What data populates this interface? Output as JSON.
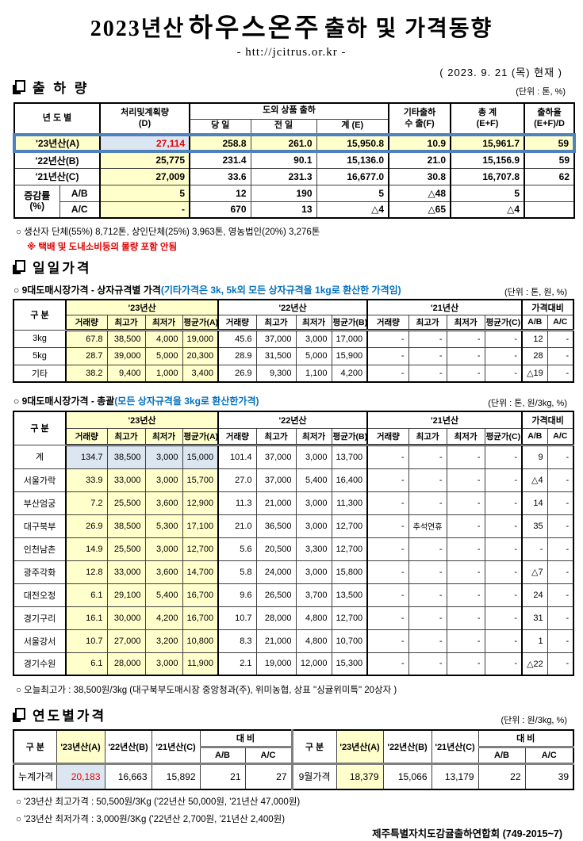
{
  "colors": {
    "highlight_yellow": "#ffffcc",
    "highlight_blue": "#dce6f1",
    "selected_row_border": "#4f81bd",
    "red_value": "#e60000",
    "blue_text": "#0070c0",
    "gray_divider": "#7f7f7f"
  },
  "header": {
    "title_prefix": "2023년산",
    "title_product": "하우스온주",
    "title_suffix": "출하 및 가격동향",
    "url": "- htt://jcitrus.or.kr -",
    "as_of": "( 2023.  9. 21 (목) 현재 )"
  },
  "sections": {
    "shipment_title": "출 하 량",
    "shipment_unit": "(단위 : 톤, %)",
    "daily_title": "일일가격",
    "daily_sub1_black": "○ 9대도매시장가격 - 상자규격별 가격",
    "daily_sub1_blue": "(기타가격은 3k, 5k외 모든 상자규격을 1kg로 환산한 가격임)",
    "daily_sub1_unit": "(단위 : 톤,  원, %)",
    "daily_sub2_black": "○ 9대도매시장가격 - 총괄",
    "daily_sub2_blue": "(모든 상자규격을 3kg로 환산한가격)",
    "daily_sub2_unit": "(단위 : 톤, 원/3kg, %)",
    "yearly_title": "연도별가격",
    "yearly_unit": "(단위 : 원/3kg, %)"
  },
  "shipment_table": {
    "headers": {
      "year_col": "년 도 별",
      "plan_l1": "처리및계획량",
      "plan_l2": "(D)",
      "offshore_group": "도외 상품 출하",
      "day": "당 일",
      "prev": "전 일",
      "sum_e": "계 (E)",
      "other_l1": "기타출하",
      "other_l2": "수 출(F)",
      "total_l1": "총   계",
      "total_l2": "(E+F)",
      "rate_l1": "출하율",
      "rate_l2": "(E+F)/D"
    },
    "rows": [
      {
        "label": "'23년산(A)",
        "values": [
          "27,114",
          "258.8",
          "261.0",
          "15,950.8",
          "10.9",
          "15,961.7",
          "59"
        ]
      },
      {
        "label": "'22년산(B)",
        "values": [
          "25,775",
          "231.4",
          "90.1",
          "15,136.0",
          "21.0",
          "15,156.9",
          "59"
        ]
      },
      {
        "label": "'21년산(C)",
        "values": [
          "27,009",
          "33.6",
          "231.3",
          "16,677.0",
          "30.8",
          "16,707.8",
          "62"
        ]
      }
    ],
    "change_label_line1": "증감률",
    "change_label_line2": "(%)",
    "change_rows": [
      {
        "label": "A/B",
        "values": [
          "5",
          "12",
          "190",
          "5",
          "△48",
          "5",
          ""
        ]
      },
      {
        "label": "A/C",
        "values": [
          "-",
          "670",
          "13",
          "△4",
          "△65",
          "△4",
          ""
        ]
      }
    ]
  },
  "notes": {
    "producers": "○ 생산자 단체(55%) 8,712톤, 상인단체(25%) 3,963톤, 영농법인(20%) 3,276톤",
    "exclusion": "※ 택배 및 도내소비등의 물량 포함 안됨",
    "today_high": "○ 오늘최고가 : 38,500원/3kg (대구북부도매시장 중앙청과(주), 위미농협, 상표 \"싱귤위미특\" 20상자 )",
    "year_high": "○ '23년산 최고가격 : 50,500원/3Kg ('22년산 50,000원, '21년산 47,000원)",
    "year_low": "○ '23년산 최저가격 :   3,000원/3Kg ('22년산  2,700원, '21년산  2,400원)",
    "org": "제주특별자치도감귤출하연합회 (749-2015~7)"
  },
  "price_headers": {
    "col_label": "구   분",
    "y23": "'23년산",
    "y22": "'22년산",
    "y21": "'21년산",
    "ratio": "가격대비",
    "sub": [
      "거래량",
      "최고가",
      "최저가",
      "평균가(A)",
      "거래량",
      "최고가",
      "최저가",
      "평균가(B)",
      "거래량",
      "최고가",
      "최저가",
      "평균가(C)",
      "A/B",
      "A/C"
    ]
  },
  "box_price_table": {
    "rows": [
      {
        "label": "3kg",
        "values": [
          "67.8",
          "38,500",
          "4,000",
          "19,000",
          "45.6",
          "37,000",
          "3,000",
          "17,000",
          "-",
          "-",
          "-",
          "-",
          "12",
          "-"
        ]
      },
      {
        "label": "5kg",
        "values": [
          "28.7",
          "39,000",
          "5,000",
          "20,300",
          "28.9",
          "31,500",
          "5,000",
          "15,900",
          "-",
          "-",
          "-",
          "-",
          "28",
          "-"
        ]
      },
      {
        "label": "기타",
        "values": [
          "38.2",
          "9,400",
          "1,000",
          "3,400",
          "26.9",
          "9,300",
          "1,100",
          "4,200",
          "-",
          "-",
          "-",
          "-",
          "△19",
          "-"
        ]
      }
    ]
  },
  "market_price_table": {
    "rows": [
      {
        "label": "계",
        "values": [
          "134.7",
          "38,500",
          "3,000",
          "15,000",
          "101.4",
          "37,000",
          "3,000",
          "13,700",
          "-",
          "-",
          "-",
          "-",
          "9",
          "-"
        ]
      },
      {
        "label": "서울가락",
        "values": [
          "33.9",
          "33,000",
          "3,000",
          "15,700",
          "27.0",
          "37,000",
          "5,400",
          "16,400",
          "-",
          "-",
          "-",
          "-",
          "△4",
          "-"
        ]
      },
      {
        "label": "부산엄궁",
        "values": [
          "7.2",
          "25,500",
          "3,600",
          "12,900",
          "11.3",
          "21,000",
          "3,000",
          "11,300",
          "-",
          "-",
          "-",
          "-",
          "14",
          "-"
        ]
      },
      {
        "label": "대구북부",
        "values": [
          "26.9",
          "38,500",
          "5,300",
          "17,100",
          "21.0",
          "36,500",
          "3,000",
          "12,700",
          "-",
          "추석연휴",
          "-",
          "-",
          "35",
          "-"
        ]
      },
      {
        "label": "인천남촌",
        "values": [
          "14.9",
          "25,500",
          "3,000",
          "12,700",
          "5.6",
          "20,500",
          "3,300",
          "12,700",
          "-",
          "-",
          "-",
          "-",
          "-",
          "-"
        ]
      },
      {
        "label": "광주각화",
        "values": [
          "12.8",
          "33,000",
          "3,600",
          "14,700",
          "5.8",
          "24,000",
          "3,000",
          "15,800",
          "-",
          "-",
          "-",
          "-",
          "△7",
          "-"
        ]
      },
      {
        "label": "대전오정",
        "values": [
          "6.1",
          "29,100",
          "5,400",
          "16,700",
          "9.6",
          "26,500",
          "3,700",
          "13,500",
          "-",
          "-",
          "-",
          "-",
          "24",
          "-"
        ]
      },
      {
        "label": "경기구리",
        "values": [
          "16.1",
          "30,000",
          "4,200",
          "16,700",
          "10.7",
          "28,000",
          "4,800",
          "12,700",
          "-",
          "-",
          "-",
          "-",
          "31",
          "-"
        ]
      },
      {
        "label": "서울강서",
        "values": [
          "10.7",
          "27,000",
          "3,200",
          "10,800",
          "8.3",
          "21,000",
          "4,800",
          "10,700",
          "-",
          "-",
          "-",
          "-",
          "1",
          "-"
        ]
      },
      {
        "label": "경기수원",
        "values": [
          "6.1",
          "28,000",
          "3,000",
          "11,900",
          "2.1",
          "19,000",
          "12,000",
          "15,300",
          "-",
          "-",
          "-",
          "-",
          "△22",
          "-"
        ]
      }
    ]
  },
  "yearly_table": {
    "headers": {
      "col_label": "구   분",
      "y23": "'23년산(A)",
      "y22": "'22년산(B)",
      "y21": "'21년산(C)",
      "dae_bi": "대  비",
      "ab": "A/B",
      "ac": "A/C"
    },
    "left": {
      "row_label": "누계가격",
      "values": [
        "20,183",
        "16,663",
        "15,892",
        "21",
        "27"
      ]
    },
    "right": {
      "row_label": "9월가격",
      "values": [
        "18,379",
        "15,066",
        "13,179",
        "22",
        "39"
      ]
    }
  }
}
